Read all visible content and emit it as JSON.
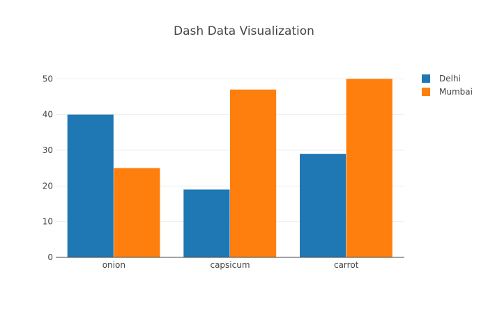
{
  "chart_data": {
    "type": "bar",
    "title": "Dash Data Visualization",
    "categories": [
      "onion",
      "capsicum",
      "carrot"
    ],
    "series": [
      {
        "name": "Delhi",
        "values": [
          40,
          19,
          29
        ],
        "color": "#1f77b4"
      },
      {
        "name": "Mumbai",
        "values": [
          25,
          47,
          50
        ],
        "color": "#ff7f0e"
      }
    ],
    "ylim": [
      0,
      52.6
    ],
    "yticks": [
      0,
      10,
      20,
      30,
      40,
      50
    ],
    "grid": true,
    "legend_position": "top-right"
  },
  "colors": {
    "text": "#444444",
    "grid": "#eeeeee",
    "axis": "#444444",
    "background": "#ffffff"
  }
}
